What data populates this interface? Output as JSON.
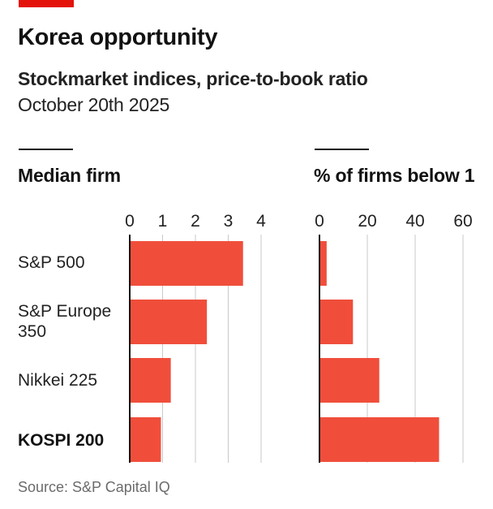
{
  "header": {
    "accent_color": "#E3120B",
    "title": "Korea opportunity",
    "subtitle": "Stockmarket indices, price-to-book ratio",
    "date": "October 20th 2025"
  },
  "source": "Source: S&P Capital IQ",
  "colors": {
    "bar": "#F04E3B",
    "grid": "#C9C9C9",
    "axis": "#121212"
  },
  "rows": [
    {
      "label": "S&P 500",
      "highlight": false
    },
    {
      "label": "S&P Europe 350",
      "highlight": false
    },
    {
      "label": "Nikkei 225",
      "highlight": false
    },
    {
      "label": "KOSPI 200",
      "highlight": true
    }
  ],
  "chart_data": [
    {
      "type": "bar",
      "orientation": "horizontal",
      "title": "Median firm",
      "categories": [
        "S&P 500",
        "S&P Europe 350",
        "Nikkei 225",
        "KOSPI 200"
      ],
      "values": [
        3.45,
        2.35,
        1.25,
        0.95
      ],
      "xlim": [
        0,
        4
      ],
      "xticks": [
        "0",
        "1",
        "2",
        "3",
        "4"
      ],
      "grid": true,
      "tick_position": "top"
    },
    {
      "type": "bar",
      "orientation": "horizontal",
      "title": "% of firms below 1",
      "categories": [
        "S&P 500",
        "S&P Europe 350",
        "Nikkei 225",
        "KOSPI 200"
      ],
      "values": [
        3,
        14,
        25,
        50
      ],
      "xlim": [
        0,
        60
      ],
      "xticks": [
        "0",
        "20",
        "40",
        "60"
      ],
      "grid": true,
      "tick_position": "top"
    }
  ]
}
